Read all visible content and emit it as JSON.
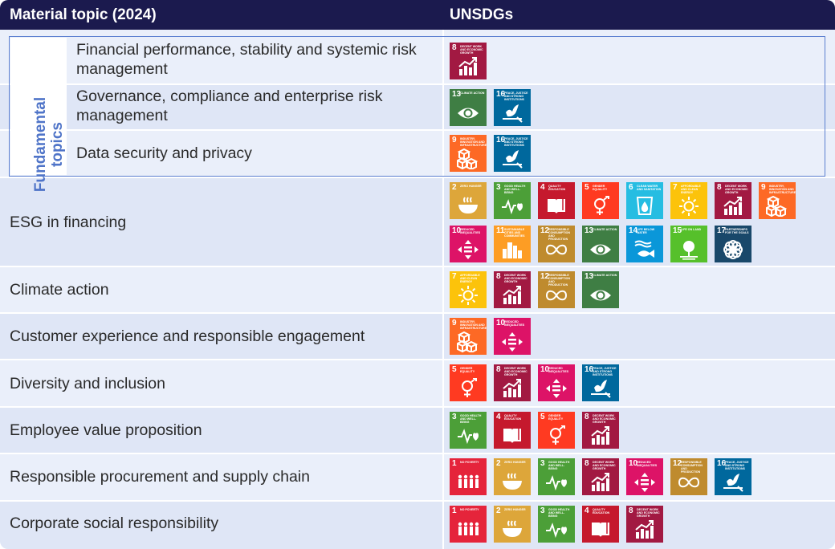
{
  "header": {
    "col_topic": "Material topic (2024)",
    "col_sdg": "UNSDGs"
  },
  "fundamental_label": [
    "Fundamental",
    "topics"
  ],
  "sdg_catalog": {
    "1": {
      "title": "NO POVERTY",
      "color": "#e5243b",
      "icon": "people-icon"
    },
    "2": {
      "title": "ZERO HUNGER",
      "color": "#dda63a",
      "icon": "bowl-icon"
    },
    "3": {
      "title": "GOOD HEALTH AND WELL-BEING",
      "color": "#4c9f38",
      "icon": "heartbeat-icon"
    },
    "4": {
      "title": "QUALITY EDUCATION",
      "color": "#c5192d",
      "icon": "book-icon"
    },
    "5": {
      "title": "GENDER EQUALITY",
      "color": "#ff3a21",
      "icon": "gender-icon"
    },
    "6": {
      "title": "CLEAN WATER AND SANITATION",
      "color": "#26bde2",
      "icon": "water-drop-icon"
    },
    "7": {
      "title": "AFFORDABLE AND CLEAN ENERGY",
      "color": "#fcc30b",
      "icon": "sun-icon"
    },
    "8": {
      "title": "DECENT WORK AND ECONOMIC GROWTH",
      "color": "#a21942",
      "icon": "growth-chart-icon"
    },
    "9": {
      "title": "INDUSTRY, INNOVATION AND INFRASTRUCTURE",
      "color": "#fd6925",
      "icon": "cubes-icon"
    },
    "10": {
      "title": "REDUCED INEQUALITIES",
      "color": "#dd1367",
      "icon": "equality-icon"
    },
    "11": {
      "title": "SUSTAINABLE CITIES AND COMMUNITIES",
      "color": "#fd9d24",
      "icon": "buildings-icon"
    },
    "12": {
      "title": "RESPONSIBLE CONSUMPTION AND PRODUCTION",
      "color": "#bf8b2e",
      "icon": "infinity-icon"
    },
    "13": {
      "title": "CLIMATE ACTION",
      "color": "#3f7e44",
      "icon": "eye-globe-icon"
    },
    "14": {
      "title": "LIFE BELOW WATER",
      "color": "#0a97d9",
      "icon": "fish-icon"
    },
    "15": {
      "title": "LIFE ON LAND",
      "color": "#56c02b",
      "icon": "tree-icon"
    },
    "16": {
      "title": "PEACE, JUSTICE AND STRONG INSTITUTIONS",
      "color": "#00689d",
      "icon": "dove-icon"
    },
    "17": {
      "title": "PARTNERSHIPS FOR THE GOALS",
      "color": "#19486a",
      "icon": "flower-icon"
    }
  },
  "fundamental_rows": [
    {
      "topic": "Financial performance, stability and systemic risk management",
      "sdgs": [
        "8"
      ]
    },
    {
      "topic": "Governance, compliance and enterprise risk management",
      "sdgs": [
        "13",
        "16"
      ]
    },
    {
      "topic": "Data security and privacy",
      "sdgs": [
        "9",
        "16"
      ]
    }
  ],
  "rows": [
    {
      "topic": "ESG in financing",
      "sdgs": [
        "2",
        "3",
        "4",
        "5",
        "6",
        "7",
        "8",
        "9",
        "10",
        "11",
        "12",
        "13",
        "14",
        "15",
        "17"
      ]
    },
    {
      "topic": "Climate action",
      "sdgs": [
        "7",
        "8",
        "12",
        "13"
      ]
    },
    {
      "topic": "Customer experience and responsible engagement",
      "sdgs": [
        "9",
        "10"
      ]
    },
    {
      "topic": "Diversity and inclusion",
      "sdgs": [
        "5",
        "8",
        "10",
        "16"
      ]
    },
    {
      "topic": "Employee value proposition",
      "sdgs": [
        "3",
        "4",
        "5",
        "8"
      ]
    },
    {
      "topic": "Responsible procurement and supply chain",
      "sdgs": [
        "1",
        "2",
        "3",
        "8",
        "10",
        "12",
        "16"
      ]
    },
    {
      "topic": "Corporate social responsibility",
      "sdgs": [
        "1",
        "2",
        "3",
        "4",
        "8"
      ]
    }
  ]
}
